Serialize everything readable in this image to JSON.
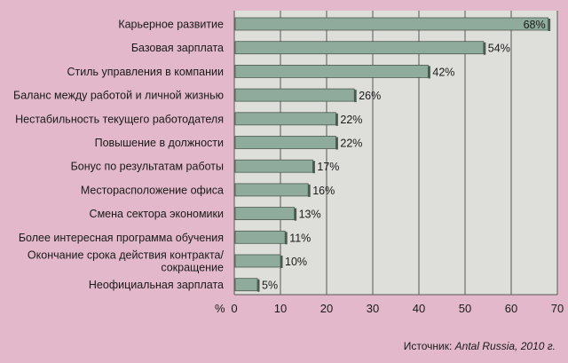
{
  "chart_data": {
    "type": "bar",
    "orientation": "horizontal",
    "categories": [
      "Карьерное развитие",
      "Базовая зарплата",
      "Стиль управления в компании",
      "Баланс между работой и личной жизнью",
      "Нестабильность текущего работодателя",
      "Повышение в должности",
      "Бонус по результатам работы",
      "Месторасположение офиса",
      "Смена сектора экономики",
      "Более интересная программа обучения",
      "Окончание срока действия контракта/ сокращение",
      "Неофициальная зарплата"
    ],
    "category_lines": [
      [
        "Карьерное развитие"
      ],
      [
        "Базовая зарплата"
      ],
      [
        "Стиль управления в компании"
      ],
      [
        "Баланс между работой и личной жизнью"
      ],
      [
        "Нестабильность текущего работодателя"
      ],
      [
        "Повышение в должности"
      ],
      [
        "Бонус по результатам работы"
      ],
      [
        "Месторасположение офиса"
      ],
      [
        "Смена сектора экономики"
      ],
      [
        "Более интересная программа обучения"
      ],
      [
        "Окончание срока действия контракта/",
        "сокращение"
      ],
      [
        "Неофициальная зарплата"
      ]
    ],
    "values": [
      68,
      54,
      42,
      26,
      22,
      22,
      17,
      16,
      13,
      11,
      10,
      5
    ],
    "value_labels": [
      "68%",
      "54%",
      "42%",
      "26%",
      "22%",
      "22%",
      "17%",
      "16%",
      "13%",
      "11%",
      "10%",
      "5%"
    ],
    "xlim": [
      0,
      70
    ],
    "xticks": [
      0,
      10,
      20,
      30,
      40,
      50,
      60,
      70
    ],
    "xtick_labels": [
      "0",
      "10",
      "20",
      "30",
      "40",
      "50",
      "60",
      "70"
    ],
    "unit_label": "%",
    "grid": "vertical",
    "colors": {
      "background": "#e2b8ca",
      "plot_area": "#dededb",
      "bar": "#8fab9b",
      "bar_edge": "#4a5a50",
      "grid": "#555555"
    }
  },
  "source": {
    "prefix": "Источник: ",
    "name": "Antal Russia",
    "suffix": ", 2010 г."
  }
}
